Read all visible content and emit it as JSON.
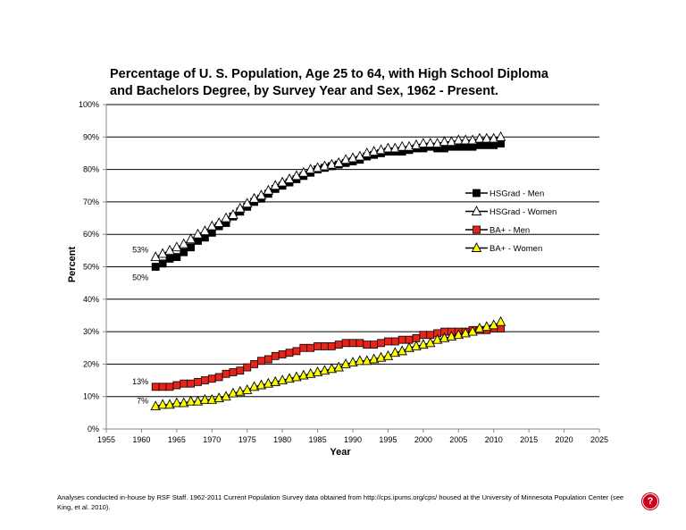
{
  "colors": {
    "hs_men_marker": "#000000",
    "hs_women_marker": "#ffffff",
    "ba_men_marker": "#e8231a",
    "ba_women_marker": "#ffff00",
    "line": "#000000",
    "help_badge": "#d0021b"
  },
  "footnote": "Analyses conducted in-house by RSF Staff. 1962-2011 Current Population Survey data obtained from http://cps.ipums.org/cps/ housed at the University of Minnesota Population Center (see King, et al. 2010).",
  "help_icon": {
    "label": "?",
    "icon": "question-icon"
  },
  "chart_data": {
    "type": "line",
    "title": "Percentage of U. S. Population, Age 25 to 64, with High School Diploma and Bachelors Degree, by Survey Year and Sex, 1962 - Present.",
    "xlabel": "Year",
    "ylabel": "Percent",
    "xlim": [
      1955,
      2025
    ],
    "ylim": [
      0,
      100
    ],
    "x_ticks": [
      1955,
      1960,
      1965,
      1970,
      1975,
      1980,
      1985,
      1990,
      1995,
      2000,
      2005,
      2010,
      2015,
      2020,
      2025
    ],
    "x_tick_labels": [
      "1955",
      "1960",
      "1965",
      "1970",
      "1975",
      "1980",
      "1985",
      "1990",
      "1995",
      "2000",
      "2005",
      "2010",
      "2015",
      "2020",
      "2025"
    ],
    "y_ticks": [
      0,
      10,
      20,
      30,
      40,
      50,
      60,
      70,
      80,
      90,
      100
    ],
    "y_tick_labels": [
      "0%",
      "10%",
      "20%",
      "30%",
      "40%",
      "50%",
      "60%",
      "70%",
      "80%",
      "90%",
      "100%"
    ],
    "grid": "horizontal",
    "legend_position": "right",
    "x": [
      1962,
      1963,
      1964,
      1965,
      1966,
      1967,
      1968,
      1969,
      1970,
      1971,
      1972,
      1973,
      1974,
      1975,
      1976,
      1977,
      1978,
      1979,
      1980,
      1981,
      1982,
      1983,
      1984,
      1985,
      1986,
      1987,
      1988,
      1989,
      1990,
      1991,
      1992,
      1993,
      1994,
      1995,
      1996,
      1997,
      1998,
      1999,
      2000,
      2001,
      2002,
      2003,
      2004,
      2005,
      2006,
      2007,
      2008,
      2009,
      2010,
      2011
    ],
    "series": [
      {
        "name": "HSGrad - Men",
        "marker": "square",
        "marker_color": "#000000",
        "values": [
          50,
          51,
          52.5,
          53,
          54.5,
          56,
          58,
          59,
          60.5,
          62.5,
          63.5,
          65.5,
          67,
          68.5,
          70,
          71,
          72.5,
          74,
          75,
          76,
          77,
          78,
          79,
          80,
          80.5,
          81,
          81.5,
          82,
          82.5,
          83,
          84,
          84.5,
          85,
          85.5,
          85.5,
          85.5,
          86,
          86.5,
          86.5,
          87,
          86.5,
          86.5,
          87,
          87,
          87,
          87,
          87.5,
          87.5,
          87.5,
          88
        ]
      },
      {
        "name": "HSGrad - Women",
        "marker": "triangle",
        "marker_color": "#ffffff",
        "values": [
          53,
          54,
          55,
          56,
          57,
          58.5,
          60,
          61,
          62.5,
          63.5,
          65,
          66,
          68,
          69.5,
          71,
          72,
          73.5,
          75,
          76,
          77,
          78,
          79,
          80,
          80.5,
          81,
          81.5,
          82,
          83,
          83.5,
          84,
          85,
          85.5,
          86,
          86.5,
          86.5,
          87,
          87,
          87.5,
          88,
          88,
          88,
          88.5,
          88.5,
          89,
          89,
          89,
          89.5,
          89.5,
          89.5,
          90
        ]
      },
      {
        "name": "BA+ - Men",
        "marker": "square",
        "marker_color": "#e8231a",
        "values": [
          13,
          13,
          13,
          13.5,
          14,
          14,
          14.5,
          15,
          15.5,
          16,
          17,
          17.5,
          18,
          19,
          20,
          21,
          21.5,
          22.5,
          23,
          23.5,
          24,
          25,
          25,
          25.5,
          25.5,
          25.5,
          26,
          26.5,
          26.5,
          26.5,
          26,
          26,
          26.5,
          27,
          27,
          27.5,
          27.5,
          28,
          29,
          29,
          29.5,
          30,
          30,
          30,
          30,
          30.5,
          30.5,
          30.5,
          31,
          31
        ]
      },
      {
        "name": "BA+ - Women",
        "marker": "triangle",
        "marker_color": "#ffff00",
        "values": [
          7,
          7.5,
          7.5,
          8,
          8,
          8.5,
          8.5,
          9,
          9,
          9.5,
          10,
          11,
          11.5,
          12,
          13,
          13.5,
          14,
          14.5,
          15,
          15.5,
          16,
          16.5,
          17,
          17.5,
          18,
          18.5,
          19,
          20,
          20.5,
          21,
          21,
          21.5,
          22,
          22.5,
          23.5,
          24,
          25,
          25.5,
          26,
          26.5,
          27.5,
          28,
          28.5,
          29,
          29.5,
          30,
          31,
          31.5,
          32,
          33
        ]
      }
    ],
    "annotations": [
      {
        "text": "53%",
        "x": 1962,
        "y": 53,
        "side": "upper-left"
      },
      {
        "text": "50%",
        "x": 1962,
        "y": 50,
        "side": "lower-left"
      },
      {
        "text": "13%",
        "x": 1962,
        "y": 13,
        "side": "left"
      },
      {
        "text": "7%",
        "x": 1962,
        "y": 7,
        "side": "left"
      }
    ]
  }
}
